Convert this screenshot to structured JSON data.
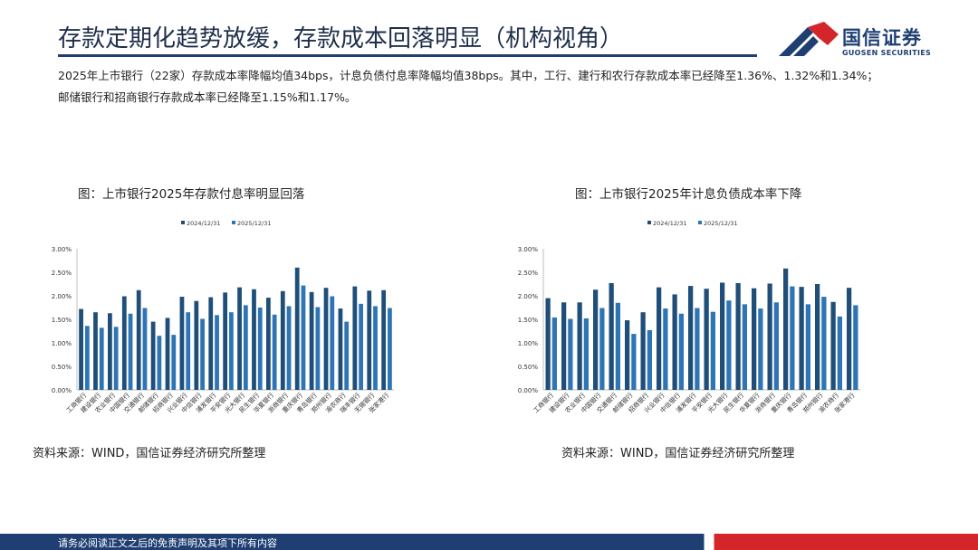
{
  "title": "存款定期化趋势放缓，存款成本回落明显（机构视角）",
  "logo": {
    "cn": "国信证券",
    "en": "GUOSEN SECURITIES"
  },
  "summary": "2025年上市银行（22家）存款成本率降幅均值34bps，计息负债付息率降幅均值38bps。其中，工行、建行和农行存款成本率已经降至1.36%、1.32%和1.34%；邮储银行和招商银行存款成本率已经降至1.15%和1.17%。",
  "left_title": "图：上市银行2025年存款付息率明显回落",
  "right_title": "图：上市银行2025年计息负债成本率下降",
  "source_left": "资料来源：WIND，国信证券经济研究所整理",
  "source_right": "资料来源：WIND，国信证券经济研究所整理",
  "footer": "请务必阅读正文之后的免责声明及其项下所有内容",
  "colors": {
    "s1": "#1f4e79",
    "s2": "#2e75b6",
    "axis": "#bfbfbf",
    "navy": "#1f3f73",
    "red": "#d4252b"
  },
  "chart_data": [
    {
      "type": "bar",
      "title": "上市银行2025年存款付息率明显回落",
      "categories": [
        "工商银行",
        "建设银行",
        "农业银行",
        "中国银行",
        "交通银行",
        "邮储银行",
        "招商银行",
        "兴业银行",
        "中信银行",
        "浦发银行",
        "平安银行",
        "光大银行",
        "民生银行",
        "华夏银行",
        "浙商银行",
        "重庆银行",
        "青岛银行",
        "郑州银行",
        "渝农商行",
        "瑞丰银行",
        "无锡银行",
        "张家港行"
      ],
      "series": [
        {
          "name": "2024/12/31",
          "values": [
            1.72,
            1.65,
            1.63,
            1.99,
            2.12,
            1.45,
            1.53,
            1.98,
            1.89,
            1.97,
            2.07,
            2.18,
            2.14,
            1.96,
            2.1,
            2.6,
            2.08,
            2.17,
            1.73,
            2.2,
            2.11,
            2.12
          ]
        },
        {
          "name": "2025/12/31",
          "values": [
            1.36,
            1.32,
            1.34,
            1.62,
            1.74,
            1.15,
            1.17,
            1.65,
            1.51,
            1.59,
            1.65,
            1.8,
            1.75,
            1.6,
            1.78,
            2.22,
            1.76,
            1.99,
            1.45,
            1.83,
            1.78,
            1.74
          ]
        }
      ],
      "yticks": [
        "0.00%",
        "0.50%",
        "1.00%",
        "1.50%",
        "2.00%",
        "2.50%",
        "3.00%"
      ],
      "ylim": [
        0,
        3
      ]
    },
    {
      "type": "bar",
      "title": "上市银行2025年计息负债成本率下降",
      "categories": [
        "工商银行",
        "建设银行",
        "农业银行",
        "中国银行",
        "交通银行",
        "邮储银行",
        "招商银行",
        "兴业银行",
        "中信银行",
        "浦发银行",
        "平安银行",
        "光大银行",
        "民生银行",
        "华夏银行",
        "浙商银行",
        "重庆银行",
        "青岛银行",
        "郑州银行",
        "渝农商行",
        "张家港行"
      ],
      "series": [
        {
          "name": "2024/12/31",
          "values": [
            1.95,
            1.86,
            1.86,
            2.13,
            2.27,
            1.48,
            1.65,
            2.18,
            2.03,
            2.21,
            2.15,
            2.28,
            2.27,
            2.16,
            2.26,
            2.58,
            2.19,
            2.25,
            1.87,
            2.17
          ]
        },
        {
          "name": "2025/12/31",
          "values": [
            1.54,
            1.51,
            1.52,
            1.74,
            1.85,
            1.19,
            1.27,
            1.73,
            1.62,
            1.74,
            1.66,
            1.9,
            1.82,
            1.73,
            1.86,
            2.2,
            1.82,
            1.98,
            1.56,
            1.8
          ]
        }
      ],
      "yticks": [
        "0.00%",
        "0.50%",
        "1.00%",
        "1.50%",
        "2.00%",
        "2.50%",
        "3.00%"
      ],
      "ylim": [
        0,
        3
      ]
    }
  ]
}
